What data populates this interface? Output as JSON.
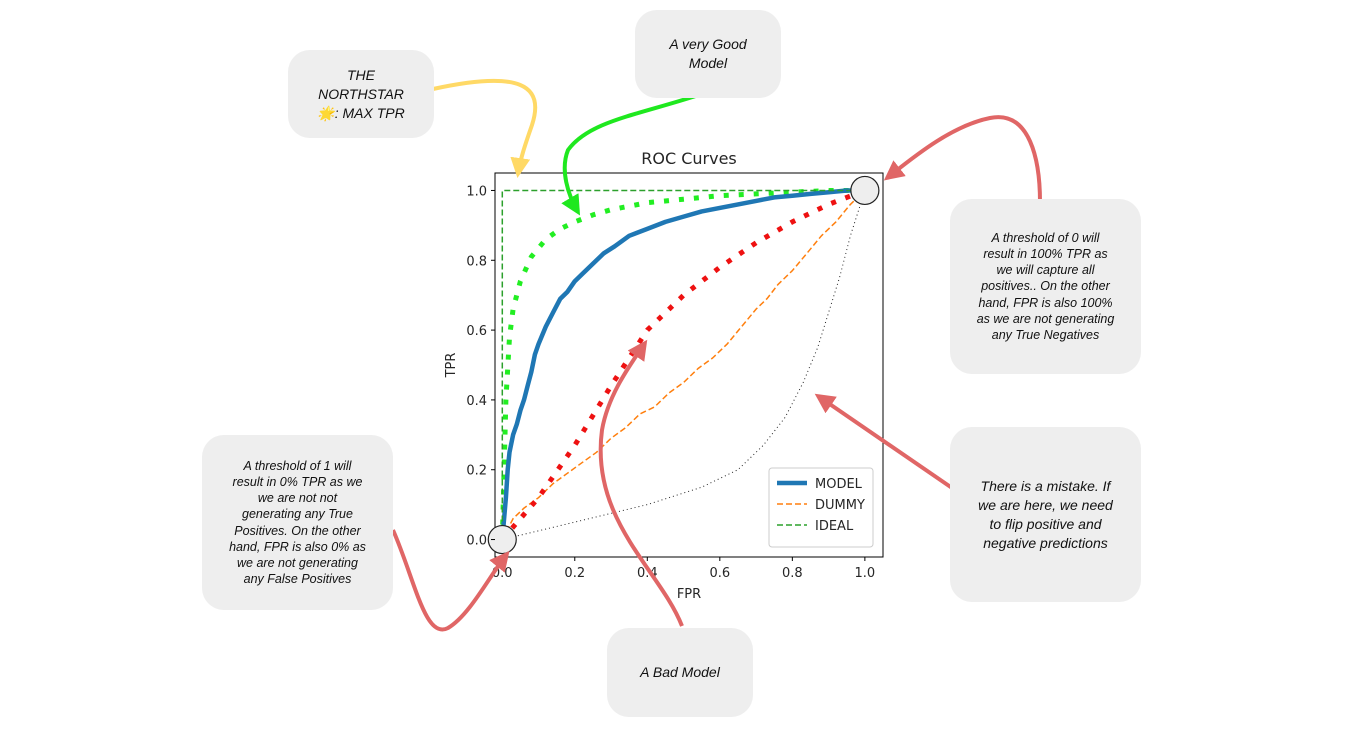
{
  "colors": {
    "model": "#1f77b4",
    "dummy": "#ff7f0e",
    "ideal": "#2ca02c",
    "very_good": "#22ee22",
    "bad": "#ee1111",
    "mistake": "#222222",
    "arrow_red": "#e06666",
    "arrow_yellow": "#ffd966",
    "arrow_green": "#1fe81f",
    "note_bg": "#eeeeee"
  },
  "notes": {
    "northstar": "THE\nNORTHSTAR\n🌟: MAX TPR",
    "very_good": "A very Good\nModel",
    "threshold0": "A threshold of 0 will\nresult in 100% TPR as\nwe will capture all\npositives.. On the other\nhand, FPR is also 100%\nas we are not generating\nany True Negatives",
    "mistake": "There is a mistake. If\nwe are here, we need\nto flip positive and\nnegative predictions",
    "threshold1": "A threshold of 1 will\nresult in 0% TPR as we\nwe are not not\ngenerating any True\nPositives. On the other\nhand, FPR is also 0% as\nwe are not generating\nany False Positives",
    "bad": "A Bad Model"
  },
  "chart_data": {
    "type": "line",
    "title": "ROC Curves",
    "xlabel": "FPR",
    "ylabel": "TPR",
    "xlim": [
      -0.02,
      1.05
    ],
    "ylim": [
      -0.05,
      1.05
    ],
    "xticks": [
      "0.0",
      "0.2",
      "0.4",
      "0.6",
      "0.8",
      "1.0"
    ],
    "yticks": [
      "0.0",
      "0.2",
      "0.4",
      "0.6",
      "0.8",
      "1.0"
    ],
    "grid": false,
    "legend_position": "lower right",
    "series": [
      {
        "name": "MODEL",
        "style": "solid",
        "color": "#1f77b4",
        "x": [
          0.0,
          0.005,
          0.01,
          0.015,
          0.02,
          0.03,
          0.04,
          0.05,
          0.06,
          0.07,
          0.08,
          0.09,
          0.1,
          0.12,
          0.14,
          0.16,
          0.18,
          0.2,
          0.22,
          0.25,
          0.28,
          0.31,
          0.35,
          0.4,
          0.45,
          0.5,
          0.55,
          0.6,
          0.65,
          0.7,
          0.75,
          0.8,
          0.85,
          0.9,
          0.95,
          1.0
        ],
        "y": [
          0.0,
          0.06,
          0.12,
          0.2,
          0.25,
          0.3,
          0.33,
          0.37,
          0.4,
          0.44,
          0.48,
          0.53,
          0.56,
          0.61,
          0.65,
          0.69,
          0.71,
          0.74,
          0.76,
          0.79,
          0.82,
          0.84,
          0.87,
          0.89,
          0.91,
          0.925,
          0.94,
          0.95,
          0.96,
          0.97,
          0.98,
          0.985,
          0.99,
          0.995,
          1.0,
          1.0
        ]
      },
      {
        "name": "DUMMY",
        "style": "dashed",
        "color": "#ff7f0e",
        "x": [
          0.0,
          0.03,
          0.06,
          0.1,
          0.14,
          0.18,
          0.22,
          0.26,
          0.3,
          0.34,
          0.38,
          0.42,
          0.46,
          0.5,
          0.54,
          0.58,
          0.62,
          0.66,
          0.7,
          0.73,
          0.76,
          0.8,
          0.84,
          0.88,
          0.92,
          0.96,
          1.0
        ],
        "y": [
          0.0,
          0.06,
          0.09,
          0.12,
          0.16,
          0.19,
          0.22,
          0.25,
          0.29,
          0.32,
          0.36,
          0.38,
          0.42,
          0.45,
          0.49,
          0.52,
          0.56,
          0.61,
          0.66,
          0.69,
          0.73,
          0.77,
          0.82,
          0.87,
          0.91,
          0.96,
          1.0
        ]
      },
      {
        "name": "IDEAL",
        "style": "dashed",
        "color": "#2ca02c",
        "x": [
          0.0,
          0.0,
          1.0
        ],
        "y": [
          0.0,
          1.0,
          1.0
        ]
      },
      {
        "name": "",
        "style": "dotted-thick",
        "color": "#22ee22",
        "x": [
          0.0,
          0.005,
          0.01,
          0.02,
          0.03,
          0.05,
          0.08,
          0.12,
          0.16,
          0.2,
          0.25,
          0.3,
          0.4,
          0.5,
          0.6,
          0.7,
          0.8,
          0.9,
          1.0
        ],
        "y": [
          0.0,
          0.2,
          0.4,
          0.58,
          0.66,
          0.74,
          0.81,
          0.86,
          0.89,
          0.91,
          0.93,
          0.945,
          0.965,
          0.975,
          0.985,
          0.99,
          0.995,
          1.0,
          1.0
        ]
      },
      {
        "name": "",
        "style": "dotted-thick",
        "color": "#ee1111",
        "x": [
          0.0,
          0.1,
          0.2,
          0.3,
          0.4,
          0.5,
          0.6,
          0.7,
          0.8,
          0.9,
          1.0
        ],
        "y": [
          0.0,
          0.12,
          0.27,
          0.44,
          0.6,
          0.7,
          0.78,
          0.85,
          0.91,
          0.96,
          1.0
        ]
      },
      {
        "name": "",
        "style": "dotted-thin",
        "color": "#222222",
        "x": [
          0.0,
          0.2,
          0.4,
          0.55,
          0.65,
          0.72,
          0.78,
          0.83,
          0.87,
          0.9,
          0.93,
          0.96,
          1.0
        ],
        "y": [
          0.0,
          0.05,
          0.1,
          0.15,
          0.2,
          0.27,
          0.35,
          0.45,
          0.55,
          0.65,
          0.75,
          0.87,
          1.0
        ]
      }
    ],
    "markers": [
      {
        "x": 0.0,
        "y": 0.0
      },
      {
        "x": 1.0,
        "y": 1.0
      }
    ]
  }
}
